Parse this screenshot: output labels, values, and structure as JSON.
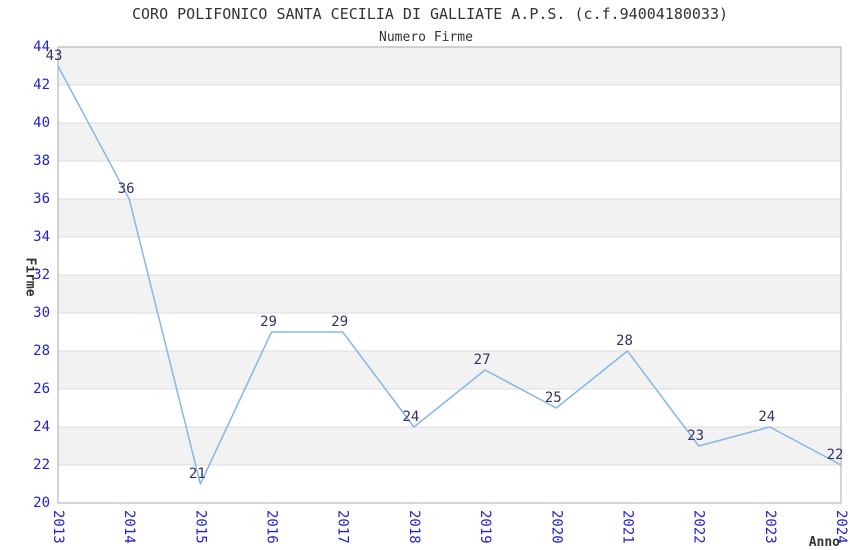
{
  "header": {
    "title": "CORO POLIFONICO SANTA CECILIA DI GALLIATE A.P.S. (c.f.94004180033)",
    "subtitle": "Numero Firme"
  },
  "chart_data": {
    "type": "line",
    "title": "CORO POLIFONICO SANTA CECILIA DI GALLIATE A.P.S. (c.f.94004180033)",
    "subtitle": "Numero Firme",
    "xlabel": "Anno",
    "ylabel": "Firme",
    "categories": [
      "2013",
      "2014",
      "2015",
      "2016",
      "2017",
      "2018",
      "2019",
      "2020",
      "2021",
      "2022",
      "2023",
      "2024"
    ],
    "values": [
      43,
      36,
      21,
      29,
      29,
      24,
      27,
      25,
      28,
      23,
      24,
      22
    ],
    "ylim": [
      20,
      44
    ],
    "ytick_step": 2,
    "grid": true,
    "point_labels": true,
    "legend": "none",
    "band_rows": "alternating gray/white horizontal bands of 2 units, gray on 22-24, 26-28, 30-32, 34-36, 38-40, 42-44"
  },
  "colors": {
    "background": "#FFFFFF",
    "line": "#85B7E9",
    "tick_label": "#2222CC",
    "point_label": "#333366",
    "title": "#333333",
    "band": "#F2F2F2",
    "grid": "#DCDCDC",
    "border": "#AAAAAA"
  }
}
